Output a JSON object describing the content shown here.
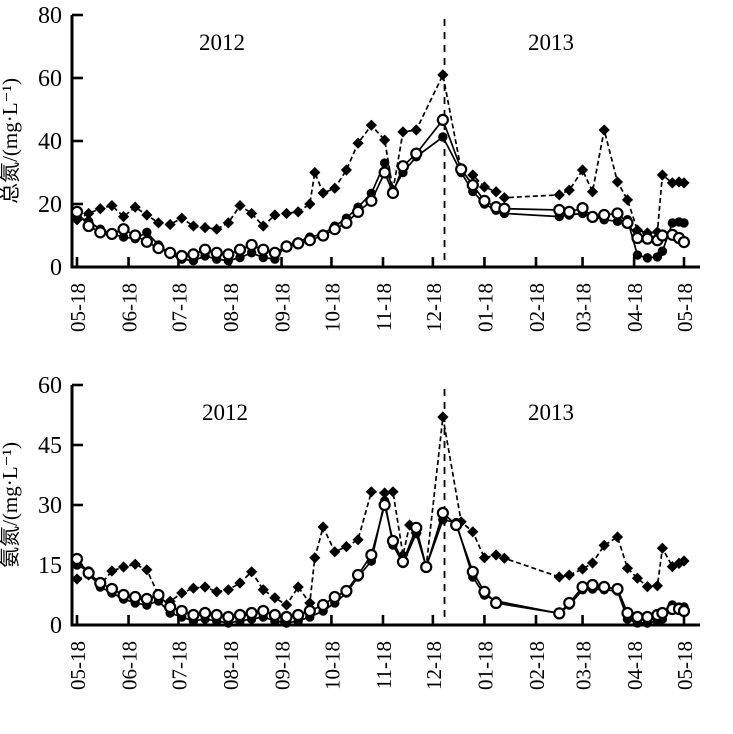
{
  "figure": {
    "background": "#ffffff",
    "ink_color": "#000000",
    "description": "Two stacked time-series line charts (total nitrogen and ammonia nitrogen concentrations) from 2012-05-18 to 2013-05-18, with a dashed vertical divider between the years 2012 and 2013. Three series per chart distinguished by markers: filled diamonds (dashed line), filled circles and open circles (solid lines). No legend, no grid."
  },
  "chart_data": [
    {
      "id": "total-nitrogen",
      "type": "line",
      "title": "",
      "xlabel": "",
      "ylabel": "总氮/(mg·L⁻¹)",
      "ylim": [
        0,
        80
      ],
      "yticks": [
        0,
        20,
        40,
        60,
        80
      ],
      "x_tick_labels": [
        "05-18",
        "06-18",
        "07-18",
        "08-18",
        "09-18",
        "10-18",
        "11-18",
        "12-18",
        "01-18",
        "02-18",
        "03-18",
        "04-18",
        "05-18"
      ],
      "x_tick_days": [
        0,
        31,
        61,
        92,
        123,
        153,
        184,
        214,
        245,
        276,
        304,
        335,
        365
      ],
      "x_range_days": [
        0,
        365
      ],
      "grid": false,
      "legend": "none",
      "annotations": {
        "year_left": "2012",
        "year_right": "2013",
        "divider_day": 221,
        "divider_style": "dashed-vertical"
      },
      "series": [
        {
          "name": "filled-diamond",
          "marker": "filled-diamond",
          "line_style": "dashed",
          "x_days": [
            0,
            7,
            14,
            21,
            28,
            35,
            42,
            49,
            56,
            63,
            70,
            77,
            84,
            91,
            98,
            105,
            112,
            119,
            126,
            133,
            140,
            143,
            148,
            155,
            162,
            169,
            177,
            185,
            190,
            196,
            204,
            220,
            231,
            238,
            245,
            252,
            257,
            290,
            296,
            304,
            310,
            317,
            325,
            331,
            337,
            343,
            349,
            352,
            358,
            362,
            365
          ],
          "values": [
            15,
            17,
            18.5,
            19.5,
            16,
            19,
            16.5,
            14,
            13.5,
            15.5,
            13,
            12.5,
            12,
            14,
            19.5,
            17,
            13,
            16.5,
            17,
            17.5,
            20,
            30,
            23.5,
            25,
            30.8,
            39.3,
            45,
            40.3,
            24.4,
            42.9,
            43.5,
            61,
            30.8,
            29.2,
            25.4,
            23.9,
            22,
            22.9,
            24.4,
            30.8,
            23.9,
            43.5,
            27,
            21.3,
            11.7,
            10.8,
            11.1,
            29.2,
            26.7,
            27,
            26.7
          ]
        },
        {
          "name": "filled-circle",
          "marker": "filled-circle",
          "line_style": "solid",
          "x_days": [
            0,
            7,
            14,
            21,
            28,
            35,
            42,
            49,
            56,
            63,
            70,
            77,
            84,
            91,
            98,
            105,
            112,
            119,
            126,
            133,
            140,
            148,
            155,
            162,
            169,
            177,
            185,
            190,
            196,
            204,
            220,
            231,
            238,
            245,
            252,
            257,
            290,
            296,
            304,
            310,
            317,
            325,
            331,
            337,
            343,
            349,
            352,
            358,
            362,
            365
          ],
          "values": [
            16,
            14.5,
            12,
            10.5,
            9.5,
            9,
            11,
            7,
            4,
            2.5,
            2,
            3.5,
            2.5,
            2,
            3,
            4.5,
            3,
            2.5,
            7,
            8,
            9.5,
            10.5,
            13,
            15.5,
            19,
            23.4,
            33,
            24.4,
            30,
            35,
            41.3,
            30,
            24,
            20,
            18,
            17,
            16,
            16.5,
            17,
            16,
            15,
            14.5,
            15,
            3.8,
            2.9,
            3.2,
            5,
            14,
            14.3,
            14
          ]
        },
        {
          "name": "open-circle",
          "marker": "open-circle",
          "line_style": "solid",
          "x_days": [
            0,
            7,
            14,
            21,
            28,
            35,
            42,
            49,
            56,
            63,
            70,
            77,
            84,
            91,
            98,
            105,
            112,
            119,
            126,
            133,
            140,
            148,
            155,
            162,
            169,
            177,
            185,
            190,
            196,
            204,
            220,
            231,
            238,
            245,
            252,
            257,
            290,
            296,
            304,
            310,
            317,
            325,
            331,
            337,
            343,
            349,
            352,
            358,
            362,
            365
          ],
          "values": [
            17.5,
            13,
            11,
            10.5,
            12,
            10,
            8,
            6,
            4.5,
            3.5,
            4,
            5.5,
            4.5,
            4,
            5.5,
            7,
            5.5,
            4.5,
            6.5,
            7.5,
            8.5,
            10,
            12,
            14,
            17.5,
            21,
            30,
            23.5,
            32,
            36,
            46.7,
            31,
            26,
            21,
            19,
            18.5,
            18.1,
            17.5,
            18.7,
            15.9,
            16.5,
            17,
            14,
            9.2,
            9,
            8.5,
            10,
            10.2,
            9.2,
            7.9
          ]
        }
      ]
    },
    {
      "id": "ammonia-nitrogen",
      "type": "line",
      "title": "",
      "xlabel": "",
      "ylabel": "氨氮/(mg·L⁻¹)",
      "ylim": [
        0,
        60
      ],
      "yticks": [
        0,
        15,
        30,
        45,
        60
      ],
      "x_tick_labels": [
        "05-18",
        "06-18",
        "07-18",
        "08-18",
        "09-18",
        "10-18",
        "11-18",
        "12-18",
        "01-18",
        "02-18",
        "03-18",
        "04-18",
        "05-18"
      ],
      "x_tick_days": [
        0,
        31,
        61,
        92,
        123,
        153,
        184,
        214,
        245,
        276,
        304,
        335,
        365
      ],
      "x_range_days": [
        0,
        365
      ],
      "grid": false,
      "legend": "none",
      "annotations": {
        "year_left": "2012",
        "year_right": "2013",
        "divider_day": 221,
        "divider_style": "dashed-vertical"
      },
      "series": [
        {
          "name": "filled-diamond",
          "marker": "filled-diamond",
          "line_style": "dashed",
          "x_days": [
            0,
            7,
            14,
            21,
            28,
            35,
            42,
            49,
            56,
            63,
            70,
            77,
            84,
            91,
            98,
            105,
            112,
            119,
            126,
            133,
            140,
            143,
            148,
            155,
            162,
            169,
            177,
            185,
            190,
            196,
            200,
            204,
            210,
            220,
            231,
            238,
            245,
            252,
            257,
            290,
            296,
            304,
            310,
            317,
            325,
            331,
            337,
            343,
            349,
            352,
            358,
            362,
            365
          ],
          "values": [
            11.5,
            12.5,
            10,
            13.5,
            14.5,
            15.2,
            13.8,
            7.5,
            5.9,
            8,
            9.2,
            9.5,
            8.3,
            8.8,
            10.5,
            13.3,
            8.8,
            6.8,
            5,
            9.5,
            5.5,
            16.8,
            24.5,
            18.3,
            19.6,
            21.3,
            33.3,
            33,
            33.3,
            17.5,
            25,
            23,
            14.6,
            52,
            25.8,
            23.3,
            16.8,
            17.5,
            16.7,
            12,
            12.5,
            14,
            15.5,
            19.9,
            22,
            14.2,
            11.7,
            9.6,
            9.8,
            19.2,
            14.6,
            15.4,
            16
          ]
        },
        {
          "name": "filled-circle",
          "marker": "filled-circle",
          "line_style": "solid",
          "x_days": [
            0,
            7,
            14,
            21,
            28,
            35,
            42,
            49,
            56,
            63,
            70,
            77,
            84,
            91,
            98,
            105,
            112,
            119,
            126,
            133,
            140,
            148,
            155,
            162,
            169,
            177,
            185,
            190,
            196,
            204,
            210,
            220,
            228,
            238,
            245,
            252,
            290,
            296,
            304,
            310,
            317,
            325,
            331,
            337,
            343,
            349,
            352,
            358,
            362,
            365
          ],
          "values": [
            15,
            13.5,
            9.5,
            8,
            6.5,
            5.5,
            5,
            6,
            3,
            2,
            1,
            1.5,
            1,
            0.5,
            1,
            1.5,
            2,
            1,
            0.5,
            1,
            2,
            3.5,
            5.5,
            8,
            12,
            16,
            31,
            20,
            15.4,
            22.9,
            14.6,
            26.3,
            25.6,
            12,
            7.5,
            6,
            2.9,
            5,
            8.8,
            9,
            8.8,
            8.5,
            1.5,
            0.5,
            0.5,
            1,
            1.5,
            5,
            4.5,
            4.5
          ]
        },
        {
          "name": "open-circle",
          "marker": "open-circle",
          "line_style": "solid",
          "x_days": [
            0,
            7,
            14,
            21,
            28,
            35,
            42,
            49,
            56,
            63,
            70,
            77,
            84,
            91,
            98,
            105,
            112,
            119,
            126,
            133,
            140,
            148,
            155,
            162,
            169,
            177,
            185,
            190,
            196,
            204,
            210,
            220,
            228,
            238,
            245,
            252,
            290,
            296,
            304,
            310,
            317,
            325,
            331,
            337,
            343,
            349,
            352,
            358,
            362,
            365
          ],
          "values": [
            16.5,
            13,
            10.5,
            9,
            7.5,
            7,
            6.5,
            7.5,
            4.5,
            3.5,
            2.5,
            3,
            2.5,
            2,
            2.5,
            3,
            3.5,
            2.5,
            2,
            2.5,
            3.5,
            5,
            7,
            8.5,
            12.5,
            17.5,
            30,
            21,
            15.8,
            24.3,
            14.5,
            28,
            25,
            13.3,
            8.3,
            5.5,
            2.9,
            5.5,
            9.5,
            10,
            9.5,
            9,
            3,
            2,
            2,
            2.5,
            3,
            4,
            4,
            3.5
          ]
        }
      ]
    }
  ]
}
